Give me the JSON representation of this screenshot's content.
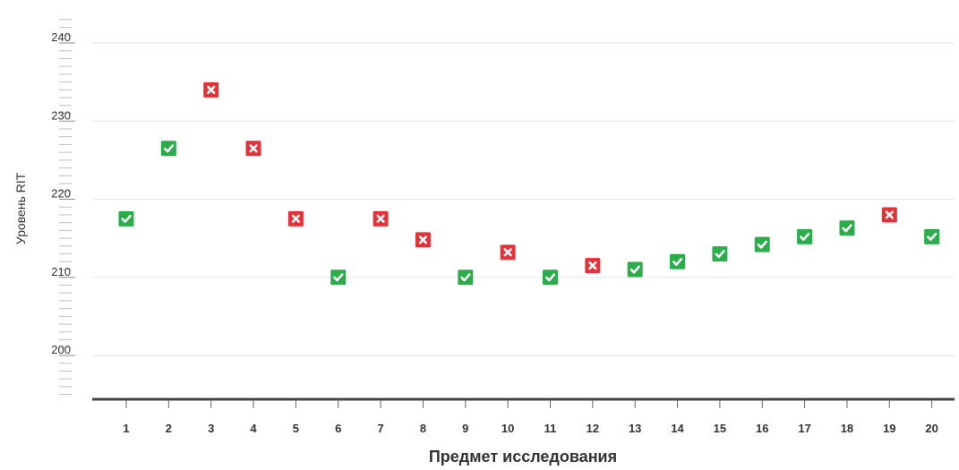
{
  "chart_data": {
    "type": "scatter",
    "xlabel": "Предмет исследования",
    "ylabel": "Уровень RIT",
    "ylim": [
      194,
      244
    ],
    "yticks": [
      200,
      210,
      220,
      230,
      240
    ],
    "grid": true,
    "x": [
      1,
      2,
      3,
      4,
      5,
      6,
      7,
      8,
      9,
      10,
      11,
      12,
      13,
      14,
      15,
      16,
      17,
      18,
      19,
      20
    ],
    "values": [
      217.5,
      226.5,
      234,
      226.5,
      217.5,
      210,
      217.5,
      214.8,
      210,
      213.2,
      210,
      211.5,
      211,
      212,
      213,
      214.2,
      215.2,
      216.3,
      218,
      215.2
    ],
    "status": [
      "correct",
      "correct",
      "incorrect",
      "incorrect",
      "incorrect",
      "correct",
      "incorrect",
      "incorrect",
      "correct",
      "incorrect",
      "correct",
      "incorrect",
      "correct",
      "correct",
      "correct",
      "correct",
      "correct",
      "correct",
      "incorrect",
      "correct"
    ],
    "colors": {
      "correct": "#2aad4a",
      "incorrect": "#e53238"
    },
    "icons": {
      "correct": "check-icon",
      "incorrect": "cross-icon"
    }
  }
}
